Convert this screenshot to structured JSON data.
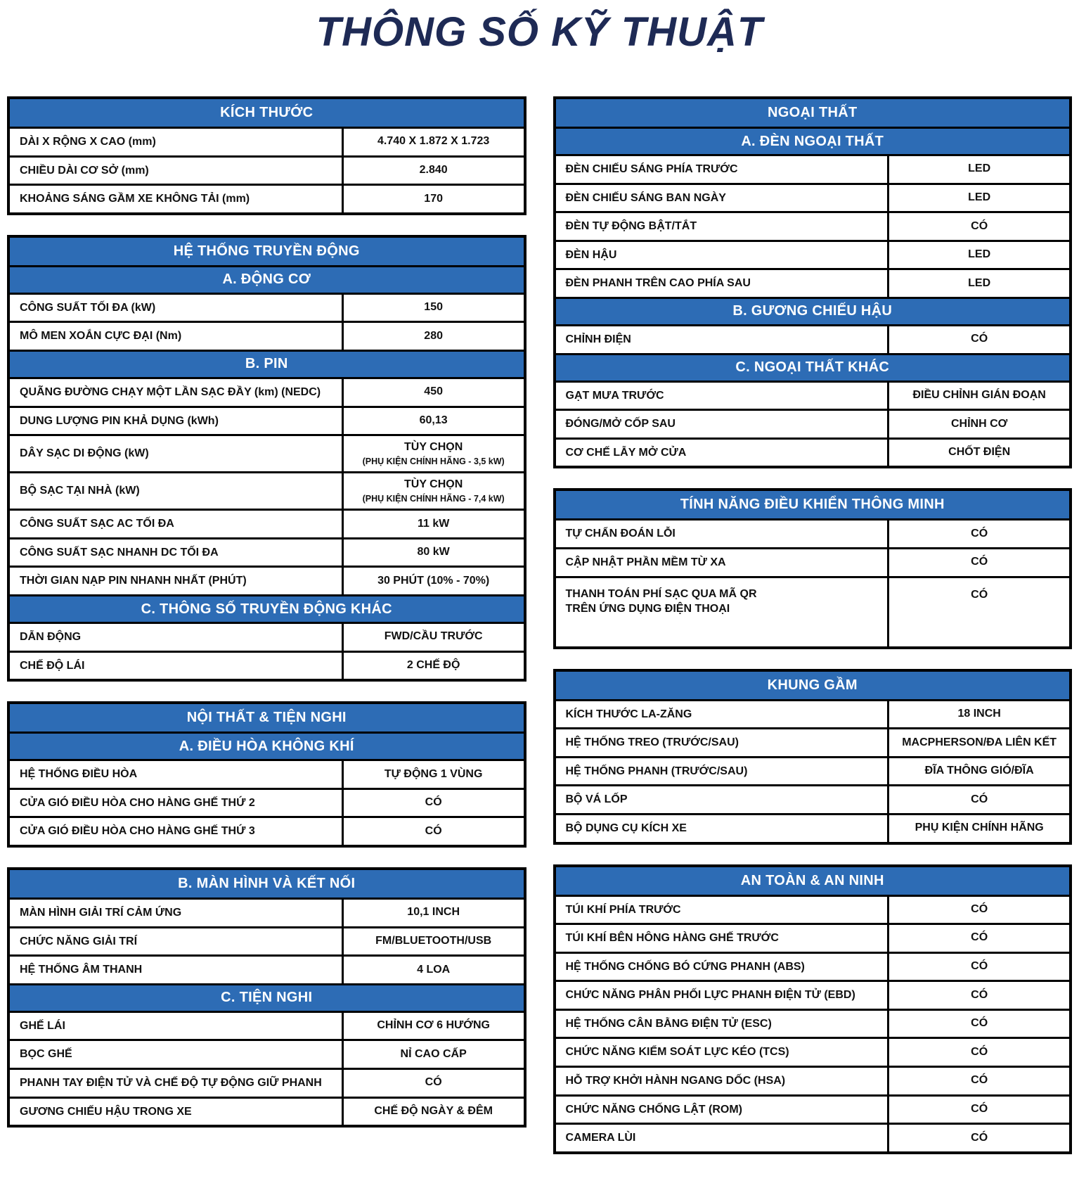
{
  "page": {
    "title": "THÔNG SỐ KỸ THUẬT"
  },
  "colors": {
    "header_bg": "#2d6cb5",
    "title": "#1e2a55",
    "border": "#000000"
  },
  "columns": {
    "left": [
      {
        "name": "kich-thuoc",
        "rows": [
          {
            "type": "header",
            "text": "KÍCH THƯỚC"
          },
          {
            "type": "row",
            "label": "DÀI X RỘNG X CAO (mm)",
            "value": "4.740 X 1.872 X 1.723"
          },
          {
            "type": "row",
            "label": "CHIỀU DÀI CƠ SỞ (mm)",
            "value": "2.840"
          },
          {
            "type": "row",
            "label": "KHOẢNG SÁNG GẦM XE KHÔNG TẢI (mm)",
            "value": "170"
          }
        ]
      },
      {
        "name": "he-thong-truyen-dong",
        "rows": [
          {
            "type": "header",
            "text": "HỆ THỐNG TRUYỀN ĐỘNG"
          },
          {
            "type": "header",
            "text": "A. ĐỘNG CƠ"
          },
          {
            "type": "row",
            "label": "CÔNG SUẤT TỐI ĐA (kW)",
            "value": "150"
          },
          {
            "type": "row",
            "label": "MÔ MEN XOẮN CỰC ĐẠI (Nm)",
            "value": "280"
          },
          {
            "type": "header",
            "text": "B. PIN"
          },
          {
            "type": "row",
            "label": "QUÃNG ĐƯỜNG CHẠY MỘT LẦN SẠC ĐẦY (km) (NEDC)",
            "value": "450"
          },
          {
            "type": "row",
            "label": "DUNG LƯỢNG PIN KHẢ DỤNG (kWh)",
            "value": "60,13"
          },
          {
            "type": "row",
            "label": "DÂY SẠC DI ĐỘNG (kW)",
            "value": "TÙY CHỌN",
            "value_sub": "(PHỤ KIỆN CHÍNH HÃNG - 3,5 kW)"
          },
          {
            "type": "row",
            "label": "BỘ SẠC TẠI NHÀ (kW)",
            "value": "TÙY CHỌN",
            "value_sub": "(PHỤ KIỆN CHÍNH HÃNG - 7,4 kW)"
          },
          {
            "type": "row",
            "label": "CÔNG SUẤT SẠC AC TỐI ĐA",
            "value": "11 kW"
          },
          {
            "type": "row",
            "label": "CÔNG SUẤT SẠC NHANH DC TỐI ĐA",
            "value": "80 kW"
          },
          {
            "type": "row",
            "label": "THỜI GIAN NẠP PIN NHANH NHẤT (PHÚT)",
            "value": "30 PHÚT (10% - 70%)"
          },
          {
            "type": "header",
            "text": "C. THÔNG SỐ TRUYỀN ĐỘNG KHÁC"
          },
          {
            "type": "row",
            "label": "DẪN ĐỘNG",
            "value": "FWD/CẦU TRƯỚC"
          },
          {
            "type": "row",
            "label": "CHẾ ĐỘ LÁI",
            "value": "2 CHẾ ĐỘ"
          }
        ]
      },
      {
        "name": "noi-that-tien-nghi",
        "rows": [
          {
            "type": "header",
            "text": "NỘI THẤT & TIỆN NGHI"
          },
          {
            "type": "header",
            "text": "A. ĐIỀU HÒA KHÔNG KHÍ"
          },
          {
            "type": "row",
            "label": "HỆ THỐNG ĐIỀU HÒA",
            "value": "TỰ ĐỘNG 1 VÙNG"
          },
          {
            "type": "row",
            "label": "CỬA GIÓ ĐIỀU HÒA CHO HÀNG GHẾ THỨ 2",
            "value": "CÓ"
          },
          {
            "type": "row",
            "label": "CỬA GIÓ ĐIỀU HÒA CHO HÀNG GHẾ THỨ 3",
            "value": "CÓ"
          }
        ]
      },
      {
        "name": "man-hinh-ket-noi-va-tien-nghi",
        "rows": [
          {
            "type": "header",
            "text": "B. MÀN HÌNH VÀ KẾT NỐI"
          },
          {
            "type": "row",
            "label": "MÀN HÌNH GIẢI TRÍ CẢM ỨNG",
            "value": "10,1 INCH"
          },
          {
            "type": "row",
            "label": "CHỨC NĂNG GIẢI TRÍ",
            "value": "FM/BLUETOOTH/USB"
          },
          {
            "type": "row",
            "label": "HỆ THỐNG ÂM THANH",
            "value": "4 LOA"
          },
          {
            "type": "header",
            "text": "C. TIỆN NGHI"
          },
          {
            "type": "row",
            "label": "GHẾ LÁI",
            "value": "CHỈNH CƠ 6 HƯỚNG"
          },
          {
            "type": "row",
            "label": "BỌC GHẾ",
            "value": "NỈ CAO CẤP"
          },
          {
            "type": "row",
            "label": "PHANH TAY ĐIỆN TỬ VÀ CHẾ ĐỘ TỰ ĐỘNG GIỮ PHANH",
            "value": "CÓ"
          },
          {
            "type": "row",
            "label": "GƯƠNG CHIẾU HẬU TRONG XE",
            "value": "CHẾ ĐỘ NGÀY & ĐÊM"
          }
        ]
      }
    ],
    "right": [
      {
        "name": "ngoai-that",
        "rows": [
          {
            "type": "header",
            "text": "NGOẠI THẤT"
          },
          {
            "type": "header",
            "text": "A. ĐÈN NGOẠI THẤT"
          },
          {
            "type": "row",
            "label": "ĐÈN CHIẾU SÁNG PHÍA TRƯỚC",
            "value": "LED"
          },
          {
            "type": "row",
            "label": "ĐÈN CHIẾU SÁNG BAN NGÀY",
            "value": "LED"
          },
          {
            "type": "row",
            "label": "ĐÈN TỰ ĐỘNG BẬT/TẮT",
            "value": "CÓ"
          },
          {
            "type": "row",
            "label": "ĐÈN HẬU",
            "value": "LED"
          },
          {
            "type": "row",
            "label": "ĐÈN PHANH TRÊN CAO PHÍA SAU",
            "value": "LED"
          },
          {
            "type": "header",
            "text": "B. GƯƠNG CHIẾU HẬU"
          },
          {
            "type": "row",
            "label": "CHỈNH ĐIỆN",
            "value": "CÓ"
          },
          {
            "type": "header",
            "text": "C. NGOẠI THẤT KHÁC"
          },
          {
            "type": "row",
            "label": "GẠT MƯA TRƯỚC",
            "value": "ĐIỀU CHỈNH GIÁN ĐOẠN"
          },
          {
            "type": "row",
            "label": "ĐÓNG/MỞ CỐP SAU",
            "value": "CHỈNH CƠ"
          },
          {
            "type": "row",
            "label": "CƠ CHẾ LẪY MỞ CỬA",
            "value": "CHỐT ĐIỆN"
          }
        ]
      },
      {
        "name": "tinh-nang-dieu-khien-thong-minh",
        "rows": [
          {
            "type": "header",
            "text": "TÍNH NĂNG ĐIỀU KHIỂN THÔNG MINH"
          },
          {
            "type": "row",
            "label": "TỰ CHẨN ĐOÁN LỖI",
            "value": "CÓ"
          },
          {
            "type": "row",
            "label": "CẬP NHẬT PHẦN MỀM TỪ XA",
            "value": "CÓ"
          },
          {
            "type": "row",
            "label": "THANH TOÁN PHÍ SẠC QUA MÃ QR\nTRÊN ỨNG DỤNG ĐIỆN THOẠI",
            "value": "CÓ",
            "tall": true
          }
        ]
      },
      {
        "name": "khung-gam",
        "rows": [
          {
            "type": "header",
            "text": "KHUNG GẦM"
          },
          {
            "type": "row",
            "label": "KÍCH THƯỚC LA-ZĂNG",
            "value": "18 INCH"
          },
          {
            "type": "row",
            "label": "HỆ THỐNG TREO (TRƯỚC/SAU)",
            "value": "MACPHERSON/ĐA LIÊN KẾT"
          },
          {
            "type": "row",
            "label": "HỆ THỐNG PHANH (TRƯỚC/SAU)",
            "value": "ĐĨA THÔNG GIÓ/ĐĨA"
          },
          {
            "type": "row",
            "label": "BỘ VÁ LỐP",
            "value": "CÓ"
          },
          {
            "type": "row",
            "label": "BỘ DỤNG CỤ KÍCH XE",
            "value": "PHỤ KIỆN CHÍNH HÃNG"
          }
        ]
      },
      {
        "name": "an-toan-an-ninh",
        "rows": [
          {
            "type": "header",
            "text": "AN TOÀN & AN NINH"
          },
          {
            "type": "row",
            "label": "TÚI KHÍ PHÍA TRƯỚC",
            "value": "CÓ"
          },
          {
            "type": "row",
            "label": "TÚI KHÍ BÊN HÔNG HÀNG GHẾ TRƯỚC",
            "value": "CÓ"
          },
          {
            "type": "row",
            "label": "HỆ THỐNG CHỐNG BÓ CỨNG PHANH (ABS)",
            "value": "CÓ"
          },
          {
            "type": "row",
            "label": "CHỨC NĂNG PHÂN PHỐI LỰC PHANH ĐIỆN TỬ (EBD)",
            "value": "CÓ"
          },
          {
            "type": "row",
            "label": "HỆ THỐNG CÂN BẰNG ĐIỆN TỬ (ESC)",
            "value": "CÓ"
          },
          {
            "type": "row",
            "label": "CHỨC NĂNG KIỂM SOÁT LỰC KÉO (TCS)",
            "value": "CÓ"
          },
          {
            "type": "row",
            "label": "HỖ TRỢ KHỞI HÀNH NGANG DỐC (HSA)",
            "value": "CÓ"
          },
          {
            "type": "row",
            "label": "CHỨC NĂNG CHỐNG LẬT (ROM)",
            "value": "CÓ"
          },
          {
            "type": "row",
            "label": "CAMERA LÙI",
            "value": "CÓ"
          }
        ]
      }
    ]
  }
}
